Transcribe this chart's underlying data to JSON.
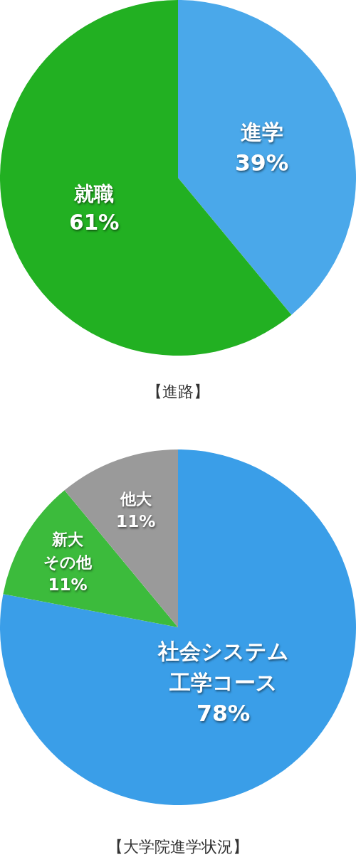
{
  "chart_data": [
    {
      "type": "pie",
      "title": "【進路】",
      "categories": [
        "進学",
        "就職"
      ],
      "values": [
        39,
        61
      ],
      "colors": [
        "#4aa8ea",
        "#22b022"
      ],
      "value_labels": [
        "39%",
        "61%"
      ]
    },
    {
      "type": "pie",
      "title": "【大学院進学状況】",
      "categories": [
        "社会システム工学コース",
        "新大その他",
        "他大"
      ],
      "values": [
        78,
        11,
        11
      ],
      "colors": [
        "#3a9ee8",
        "#3cbb3c",
        "#9a9a9a"
      ],
      "value_labels": [
        "78%",
        "11%",
        "11%"
      ]
    }
  ]
}
